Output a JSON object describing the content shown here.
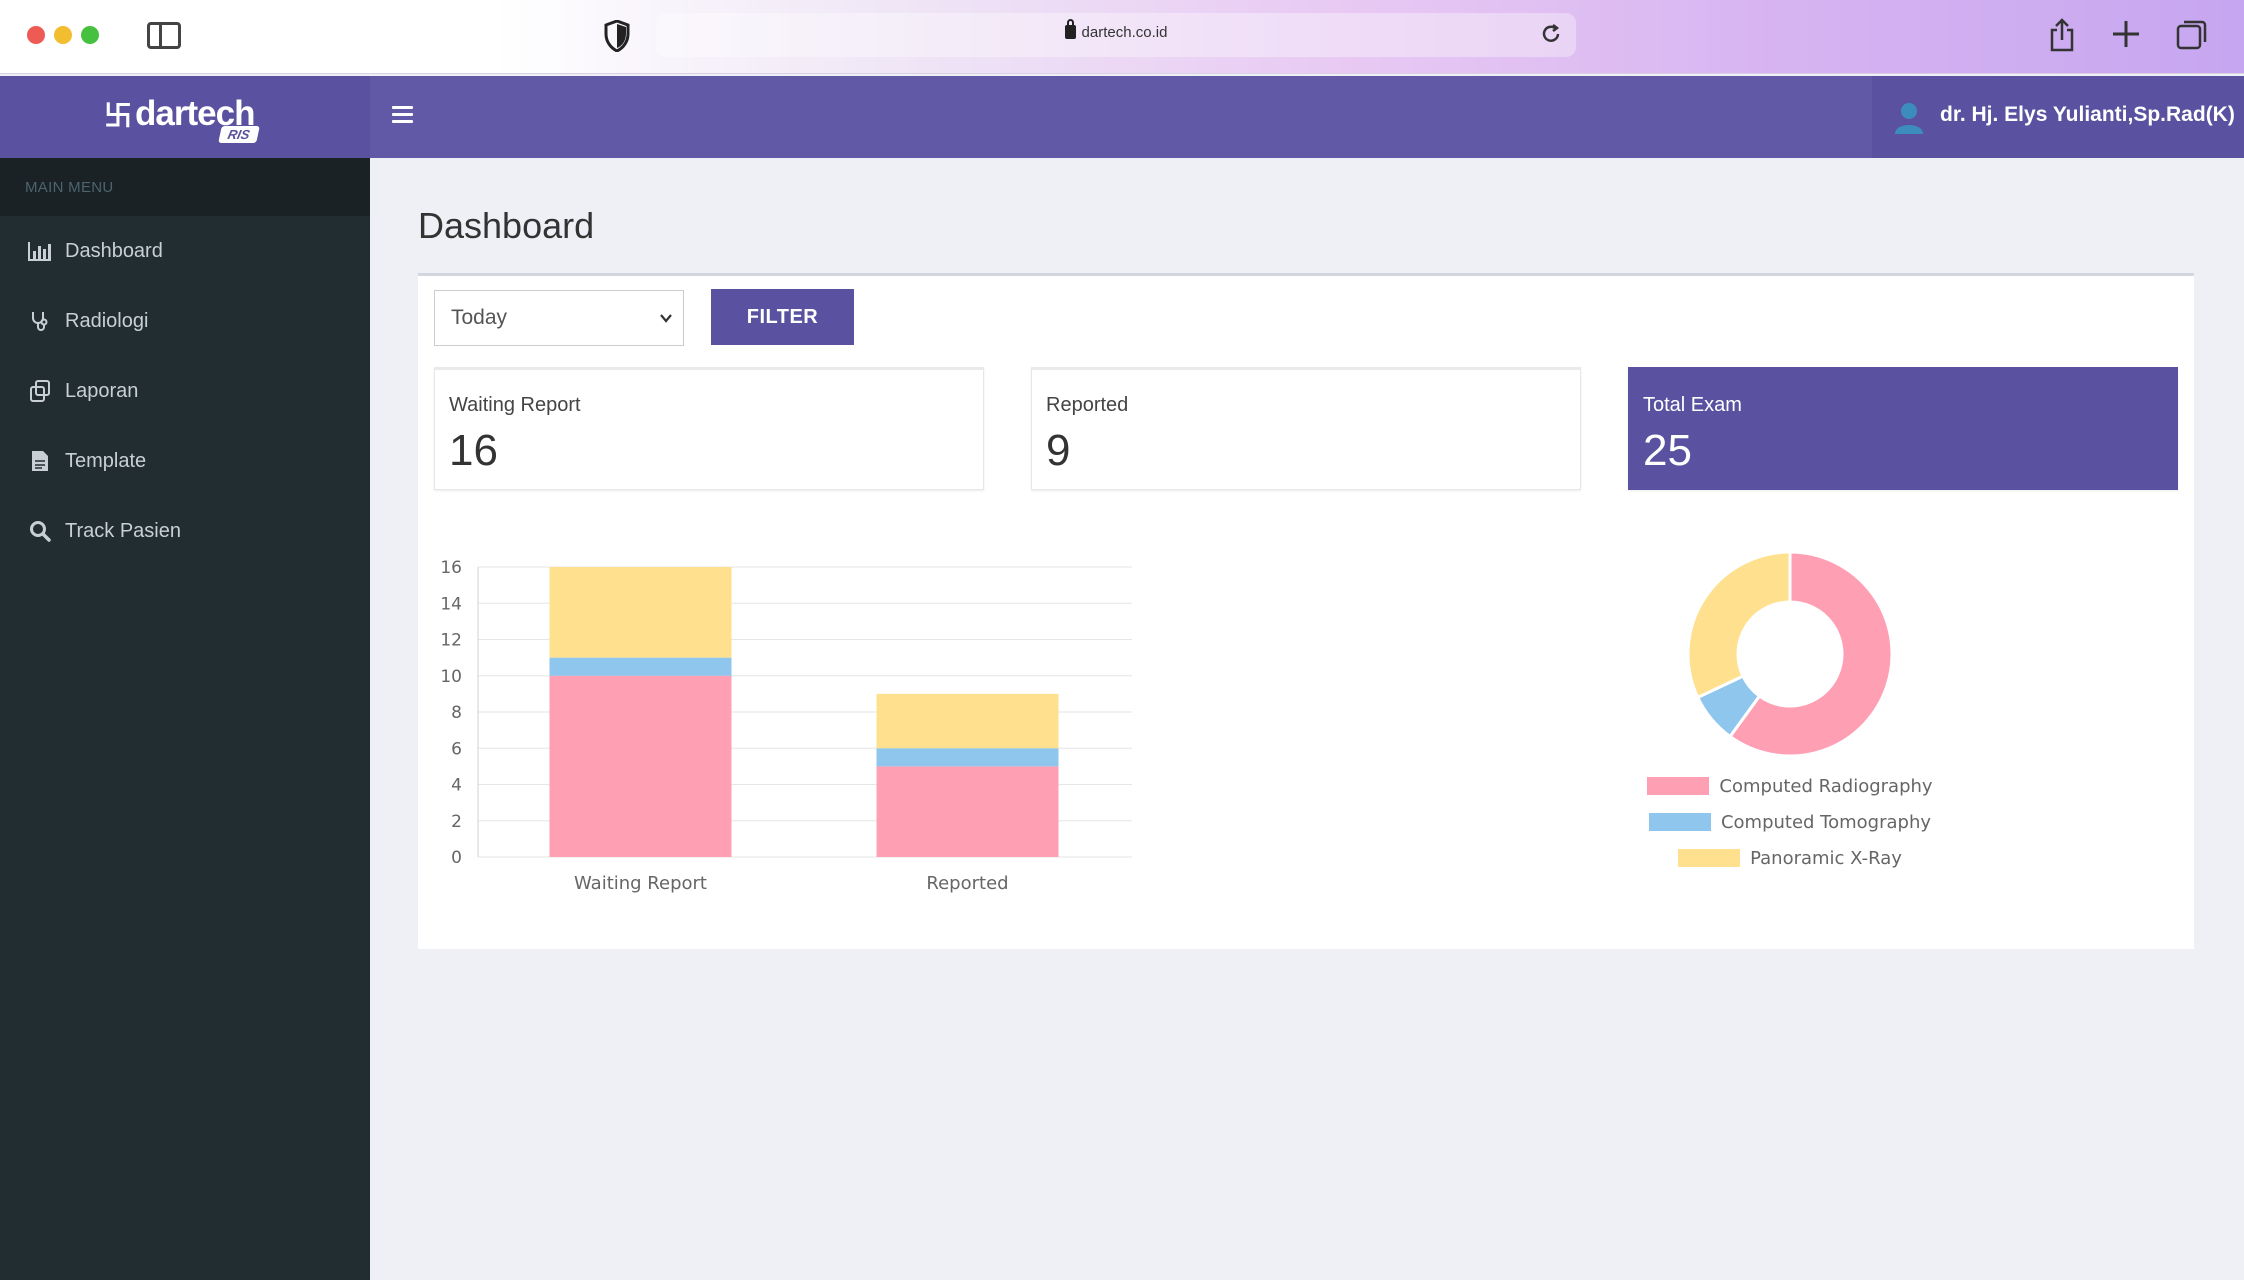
{
  "browser": {
    "url": "dartech.co.id",
    "icons": [
      "sidebar-toggle-icon",
      "shield-icon",
      "lock-icon",
      "reload-icon",
      "share-icon",
      "plus-icon",
      "tabs-icon"
    ]
  },
  "header": {
    "brand_name": "dartech",
    "brand_badge": "RIS",
    "user_name": "dr. Hj. Elys Yulianti,Sp.Rad(K)"
  },
  "sidebar": {
    "section_label": "MAIN MENU",
    "items": [
      {
        "label": "Dashboard",
        "icon": "bar-chart-icon"
      },
      {
        "label": "Radiologi",
        "icon": "stethoscope-icon"
      },
      {
        "label": "Laporan",
        "icon": "copy-icon"
      },
      {
        "label": "Template",
        "icon": "document-icon"
      },
      {
        "label": "Track Pasien",
        "icon": "search-icon"
      }
    ]
  },
  "main": {
    "title": "Dashboard",
    "filter": {
      "selected": "Today",
      "button_label": "FILTER"
    },
    "stats": [
      {
        "label": "Waiting Report",
        "value": "16"
      },
      {
        "label": "Reported",
        "value": "9"
      },
      {
        "label": "Total Exam",
        "value": "25"
      }
    ]
  },
  "colors": {
    "primary": "#5a52a0",
    "header": "#6159a6",
    "sidebar": "#222d32",
    "computed_radiography": "#ff9fb4",
    "computed_tomography": "#8ec6ee",
    "panoramic_xray": "#ffe08e"
  },
  "chart_data": [
    {
      "type": "bar",
      "stacked": true,
      "categories": [
        "Waiting Report",
        "Reported"
      ],
      "series": [
        {
          "name": "Computed Radiography",
          "values": [
            10,
            5
          ]
        },
        {
          "name": "Computed Tomography",
          "values": [
            1,
            1
          ]
        },
        {
          "name": "Panoramic X-Ray",
          "values": [
            5,
            3
          ]
        }
      ],
      "yticks": [
        0,
        2,
        4,
        6,
        8,
        10,
        12,
        14,
        16
      ],
      "ylim": [
        0,
        16
      ],
      "grid": true
    },
    {
      "type": "pie",
      "donut": true,
      "labels": [
        "Computed Radiography",
        "Computed Tomography",
        "Panoramic X-Ray"
      ],
      "values": [
        15,
        2,
        8
      ],
      "legend": "bottom"
    }
  ]
}
